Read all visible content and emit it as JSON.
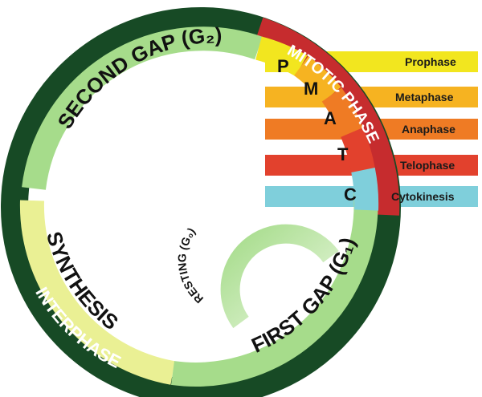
{
  "labels": {
    "interphase": "INTERPHASE",
    "mitotic_phase": "MITOTIC PHASE",
    "second_gap": "SECOND GAP (G₂)",
    "synthesis": "SYNTHESIS",
    "first_gap": "FIRST GAP (G₁)",
    "resting": "RESTING (G₀)"
  },
  "mitosis_letters": [
    "P",
    "M",
    "A",
    "T",
    "C"
  ],
  "phases": [
    {
      "label": "Prophase",
      "color": "#f2e61f"
    },
    {
      "label": "Metaphase",
      "color": "#f6b321"
    },
    {
      "label": "Anaphase",
      "color": "#ef7b24"
    },
    {
      "label": "Telophase",
      "color": "#e2412d"
    },
    {
      "label": "Cytokinesis",
      "color": "#7fcfdb"
    }
  ],
  "colors": {
    "interphase_ring": "#174a25",
    "mitotic_ring": "#c62c2e",
    "second_gap": "#a6dc8b",
    "synthesis": "#eaf094",
    "first_gap": "#a6dc8b",
    "resting": "#bfe6a8"
  }
}
